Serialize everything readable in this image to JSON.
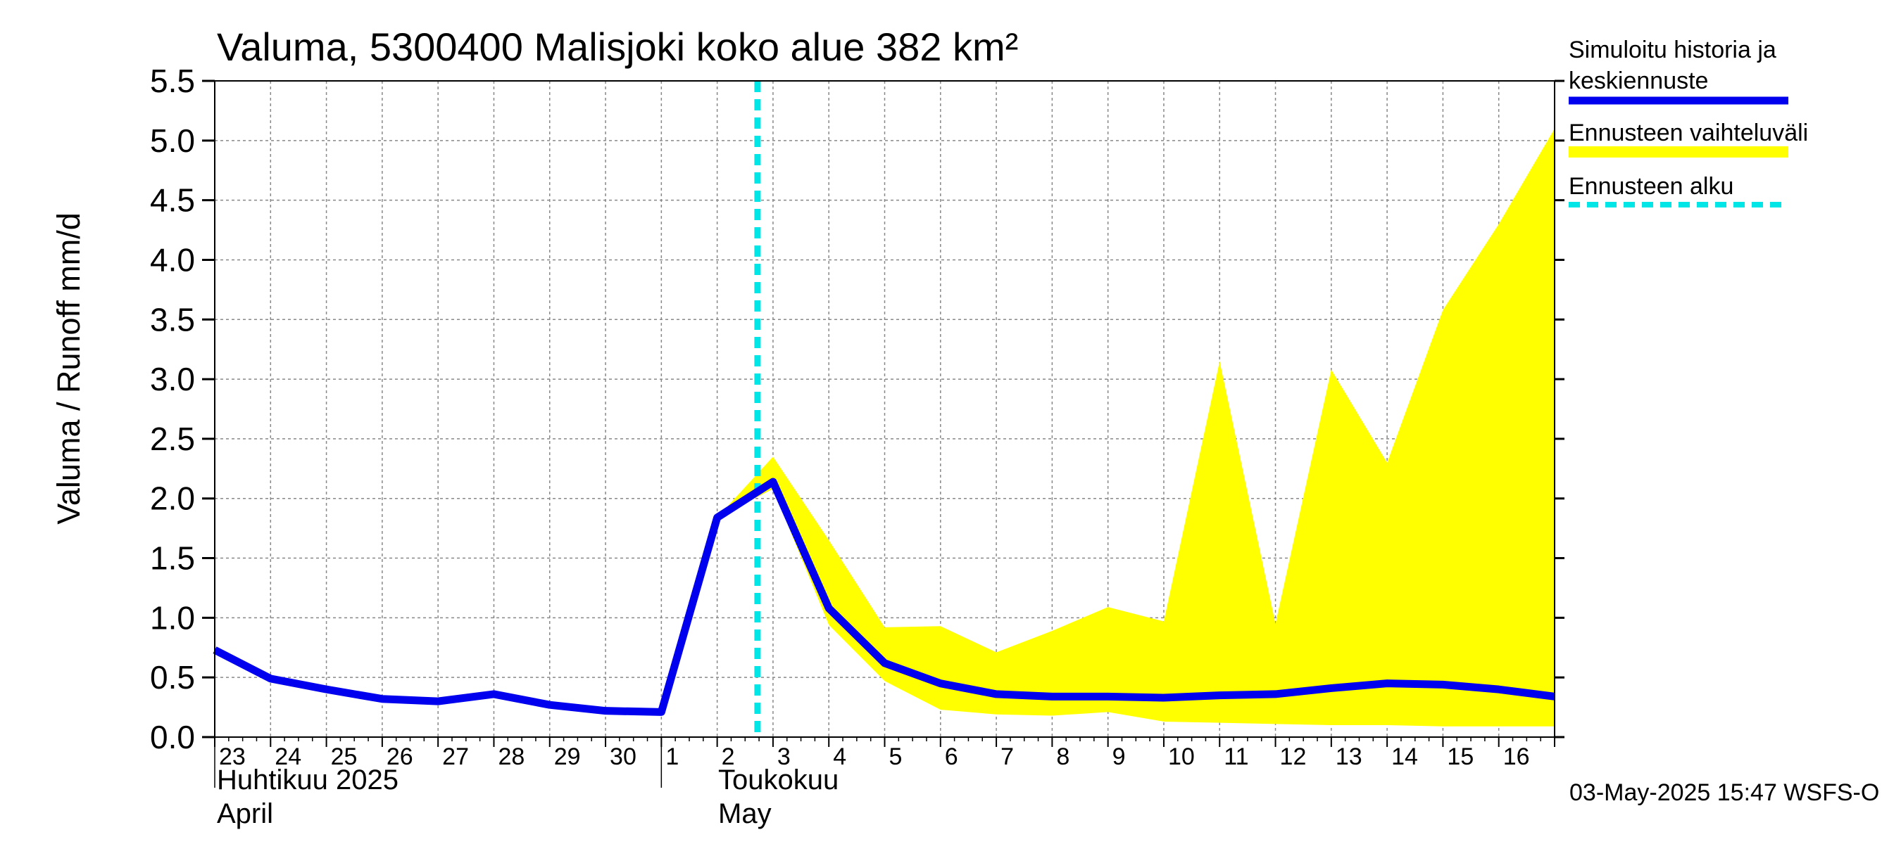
{
  "chart_data": {
    "type": "line",
    "title": "Valuma, 5300400 Malisjoki koko alue 382 km²",
    "ylabel": "Valuma / Runoff     mm/d",
    "ylim": [
      0.0,
      5.5
    ],
    "yticks": [
      "0.0",
      "0.5",
      "1.0",
      "1.5",
      "2.0",
      "2.5",
      "3.0",
      "3.5",
      "4.0",
      "4.5",
      "5.0",
      "5.5"
    ],
    "grid": true,
    "x_day_labels": [
      "23",
      "24",
      "25",
      "26",
      "27",
      "28",
      "29",
      "30",
      "1",
      "2",
      "3",
      "4",
      "5",
      "6",
      "7",
      "8",
      "9",
      "10",
      "11",
      "12",
      "13",
      "14",
      "15",
      "16"
    ],
    "months": [
      {
        "line1": "Huhtikuu  2025",
        "line2": "April"
      },
      {
        "line1": "Toukokuu",
        "line2": "May"
      }
    ],
    "x_dates": [
      "2025-04-23",
      "2025-04-24",
      "2025-04-25",
      "2025-04-26",
      "2025-04-27",
      "2025-04-28",
      "2025-04-29",
      "2025-04-30",
      "2025-05-01",
      "2025-05-02",
      "2025-05-03",
      "2025-05-04",
      "2025-05-05",
      "2025-05-06",
      "2025-05-07",
      "2025-05-08",
      "2025-05-09",
      "2025-05-10",
      "2025-05-11",
      "2025-05-12",
      "2025-05-13",
      "2025-05-14",
      "2025-05-15",
      "2025-05-16",
      "2025-05-17"
    ],
    "series": [
      {
        "name": "Simuloitu historia ja keskiennuste",
        "color": "#0000ee",
        "values": [
          0.73,
          0.49,
          0.4,
          0.32,
          0.3,
          0.36,
          0.27,
          0.22,
          0.21,
          1.84,
          2.14,
          1.08,
          0.62,
          0.45,
          0.36,
          0.34,
          0.34,
          0.33,
          0.35,
          0.36,
          0.41,
          0.45,
          0.44,
          0.4,
          0.34
        ]
      }
    ],
    "forecast_range": {
      "name": "Ennusteen vaihteluväli",
      "color": "#ffff00",
      "x_dates": [
        "2025-05-03",
        "2025-05-04",
        "2025-05-05",
        "2025-05-06",
        "2025-05-07",
        "2025-05-08",
        "2025-05-09",
        "2025-05-10",
        "2025-05-11",
        "2025-05-12",
        "2025-05-13",
        "2025-05-14",
        "2025-05-15",
        "2025-05-16",
        "2025-05-17"
      ],
      "upper": [
        2.35,
        1.65,
        0.92,
        0.93,
        0.71,
        0.89,
        1.09,
        0.97,
        3.15,
        0.95,
        3.08,
        2.3,
        3.58,
        4.3,
        5.1
      ],
      "lower": [
        2.08,
        0.94,
        0.47,
        0.23,
        0.19,
        0.18,
        0.21,
        0.13,
        0.12,
        0.11,
        0.1,
        0.1,
        0.09,
        0.09,
        0.09
      ]
    },
    "forecast_start": {
      "name": "Ennusteen alku",
      "color": "#00e5e5",
      "x_date": "2025-05-03"
    },
    "legend_position": "right"
  },
  "legend": {
    "item1_line1": "Simuloitu historia ja",
    "item1_line2": "keskiennuste",
    "item2": "Ennusteen vaihteluväli",
    "item3": "Ennusteen alku"
  },
  "timestamp": "03-May-2025 15:47 WSFS-O",
  "colors": {
    "mean_line": "#0000ee",
    "range_fill": "#ffff00",
    "forecast_start_line": "#00e5e5",
    "grid": "#888888"
  }
}
